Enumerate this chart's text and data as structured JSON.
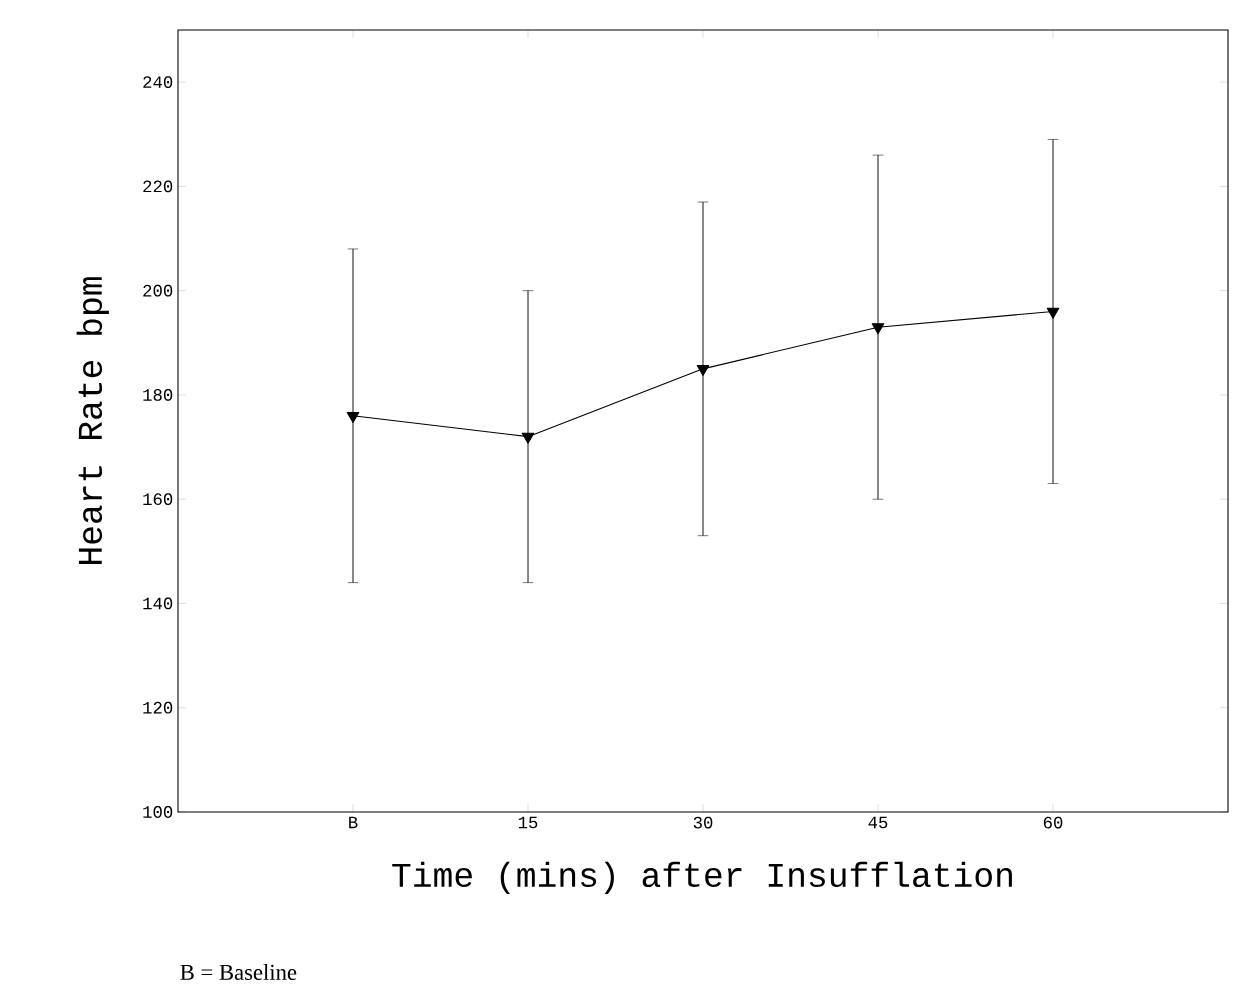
{
  "chart_data": {
    "type": "line",
    "xlabel": "Time (mins) after Insufflation",
    "ylabel": "Heart Rate bpm",
    "categories": [
      "B",
      "15",
      "30",
      "45",
      "60"
    ],
    "values": [
      176,
      172,
      185,
      193,
      196
    ],
    "errors": [
      [
        144,
        208
      ],
      [
        144,
        200
      ],
      [
        153,
        217
      ],
      [
        160,
        226
      ],
      [
        163,
        229
      ]
    ],
    "color": "#000000",
    "marker": "triangle",
    "line_style": "solid",
    "ylim": [
      100,
      250
    ],
    "yticks": [
      100,
      120,
      140,
      160,
      180,
      200,
      220,
      240
    ],
    "annotations": [
      "B = Baseline"
    ]
  }
}
